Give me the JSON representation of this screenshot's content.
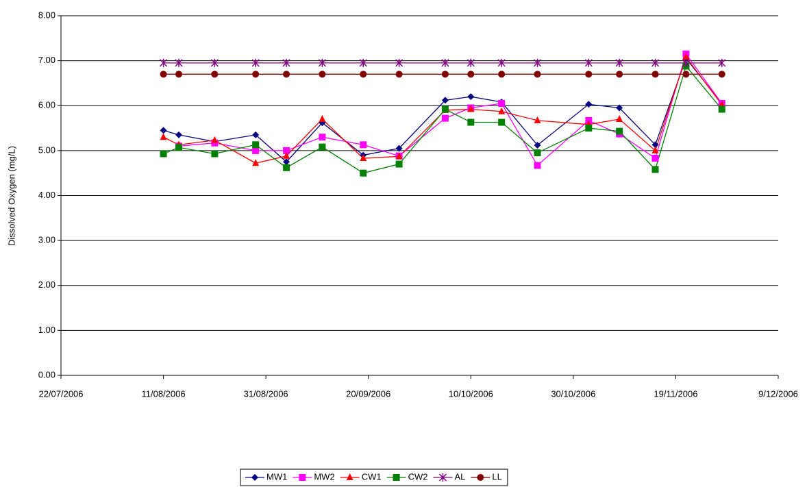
{
  "chart_data": {
    "type": "line",
    "y_label": "Dissolved Oxygen (mg/L)",
    "x": [
      "11/08/2006",
      "14/08/2006",
      "21/08/2006",
      "29/08/2006",
      "4/09/2006",
      "11/09/2006",
      "19/09/2006",
      "26/09/2006",
      "5/10/2006",
      "10/10/2006",
      "16/10/2006",
      "23/10/2006",
      "2/11/2006",
      "8/11/2006",
      "15/11/2006",
      "21/11/2006",
      "28/11/2006"
    ],
    "xlim": [
      "22/07/2006",
      "9/12/2006"
    ],
    "xticks": [
      "22/07/2006",
      "11/08/2006",
      "31/08/2006",
      "20/09/2006",
      "10/10/2006",
      "30/10/2006",
      "19/11/2006",
      "9/12/2006"
    ],
    "ylim": [
      0,
      8
    ],
    "yticks": [
      {
        "value": 0,
        "label": "0.00"
      },
      {
        "value": 1,
        "label": "1.00"
      },
      {
        "value": 2,
        "label": "2.00"
      },
      {
        "value": 3,
        "label": "3.00"
      },
      {
        "value": 4,
        "label": "4.00"
      },
      {
        "value": 5,
        "label": "5.00"
      },
      {
        "value": 6,
        "label": "6.00"
      },
      {
        "value": 7,
        "label": "7.00"
      },
      {
        "value": 8,
        "label": "8.00"
      }
    ],
    "grid": true,
    "legend": "bottom",
    "series": [
      {
        "name": "MW1",
        "color": "#000080",
        "marker": "diamond",
        "values": [
          5.45,
          5.35,
          5.2,
          5.35,
          4.75,
          5.62,
          4.9,
          5.05,
          6.12,
          6.2,
          6.08,
          5.12,
          6.03,
          5.95,
          5.13,
          7.05,
          6.05
        ]
      },
      {
        "name": "MW2",
        "color": "#ff00ff",
        "marker": "square",
        "values": [
          null,
          5.1,
          5.17,
          5.0,
          5.0,
          5.3,
          5.13,
          4.88,
          5.72,
          5.95,
          6.05,
          4.67,
          5.67,
          5.37,
          4.83,
          7.15,
          6.05
        ]
      },
      {
        "name": "CW1",
        "color": "#ff0000",
        "marker": "triangle",
        "values": [
          5.3,
          5.13,
          5.23,
          4.72,
          4.88,
          5.7,
          4.83,
          4.87,
          5.9,
          5.92,
          5.87,
          5.67,
          5.58,
          5.7,
          5.0,
          7.08,
          6.02
        ]
      },
      {
        "name": "CW2",
        "color": "#008000",
        "marker": "square",
        "values": [
          4.93,
          5.07,
          4.93,
          5.13,
          4.62,
          5.08,
          4.5,
          4.7,
          5.92,
          5.63,
          5.63,
          4.95,
          5.5,
          5.43,
          4.58,
          6.88,
          5.92
        ]
      },
      {
        "name": "AL",
        "color": "#800080",
        "marker": "star",
        "values": [
          6.95,
          6.95,
          6.95,
          6.95,
          6.95,
          6.95,
          6.95,
          6.95,
          6.95,
          6.95,
          6.95,
          6.95,
          6.95,
          6.95,
          6.95,
          6.95,
          6.95
        ]
      },
      {
        "name": "LL",
        "color": "#800000",
        "marker": "circle",
        "values": [
          6.7,
          6.7,
          6.7,
          6.7,
          6.7,
          6.7,
          6.7,
          6.7,
          6.7,
          6.7,
          6.7,
          6.7,
          6.7,
          6.7,
          6.7,
          6.7,
          6.7
        ]
      }
    ]
  }
}
